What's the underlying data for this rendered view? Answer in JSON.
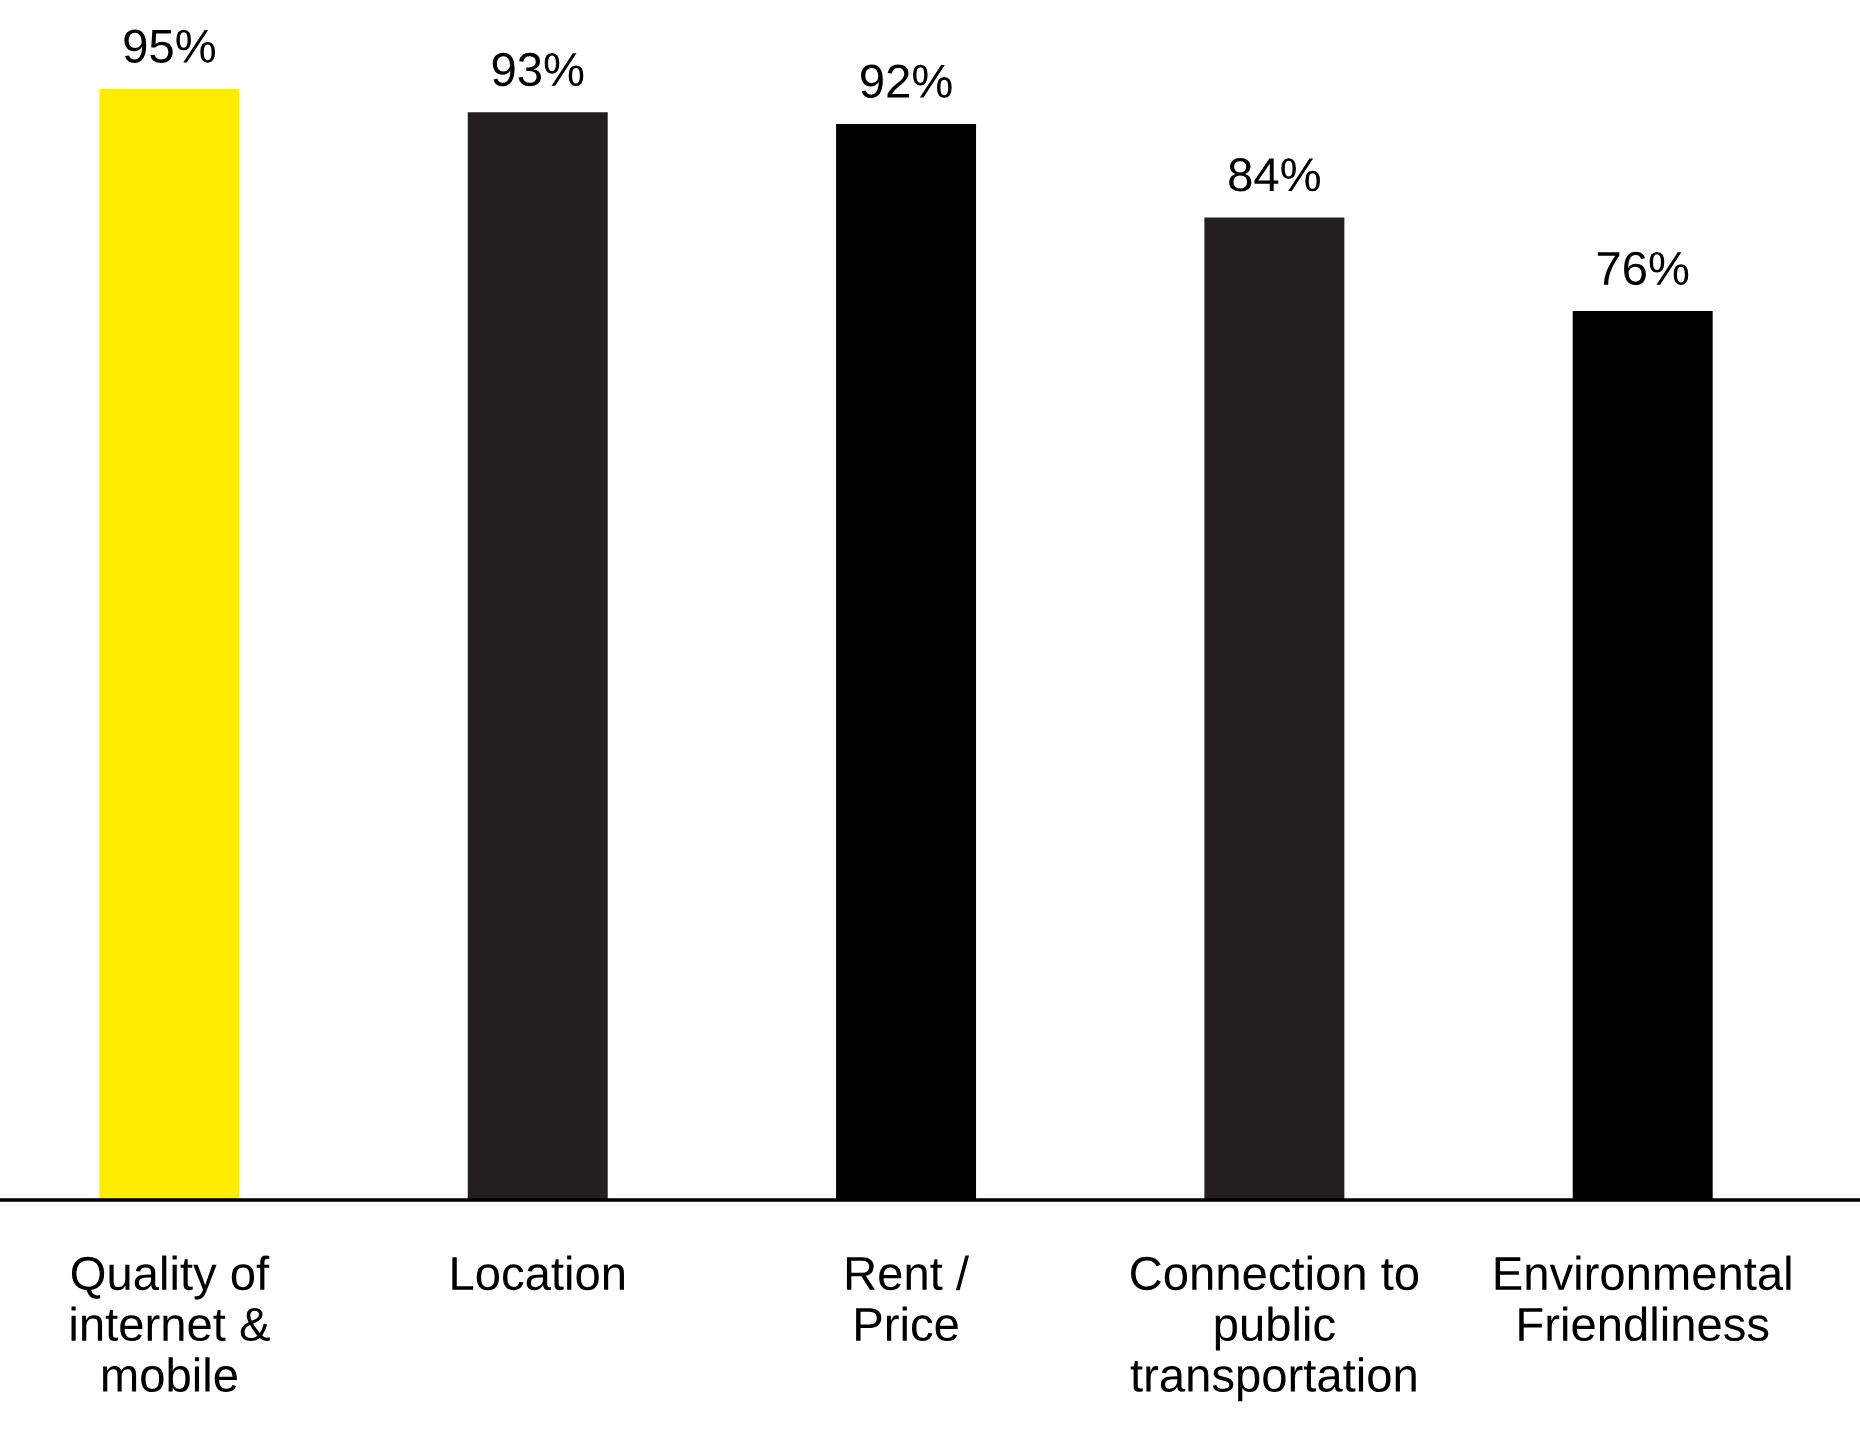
{
  "chart_data": {
    "type": "bar",
    "categories": [
      "Quality of\ninternet &\nmobile",
      "Location",
      "Rent /\nPrice",
      "Connection to\npublic\ntransportation",
      "Environmental\nFriendliness"
    ],
    "values": [
      95,
      93,
      92,
      84,
      76
    ],
    "colors": [
      "#ffed00",
      "#231f20",
      "#000000",
      "#231f20",
      "#000000"
    ],
    "value_labels": [
      "95%",
      "93%",
      "92%",
      "84%",
      "76%"
    ],
    "grid": false,
    "legend": false
  }
}
